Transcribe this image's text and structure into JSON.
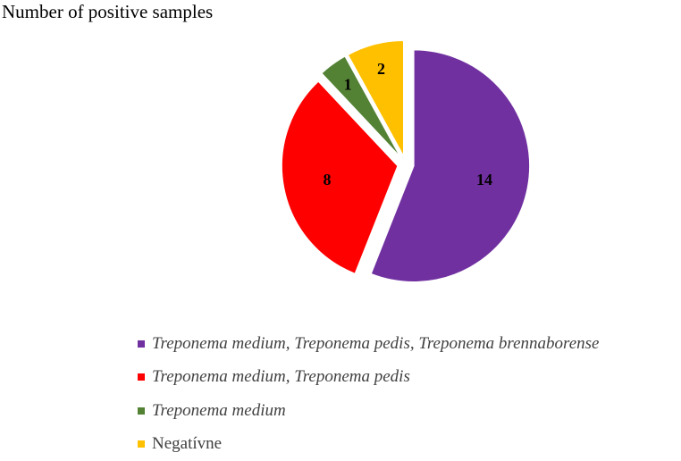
{
  "chart_data": {
    "type": "pie",
    "title": "Number of positive samples",
    "series": [
      {
        "name": "Treponema medium, Treponema pedis, Treponema brennaborense",
        "value": 14,
        "color": "#7030a0",
        "italic": true
      },
      {
        "name": "Treponema medium, Treponema pedis",
        "value": 8,
        "color": "#ff0000",
        "italic": true
      },
      {
        "name": "Treponema medium",
        "value": 1,
        "color": "#548235",
        "italic": true
      },
      {
        "name": "Negatívne",
        "value": 2,
        "color": "#ffc000",
        "italic": false
      }
    ],
    "legend_position": "bottom",
    "data_labels": true,
    "exploded": true
  }
}
